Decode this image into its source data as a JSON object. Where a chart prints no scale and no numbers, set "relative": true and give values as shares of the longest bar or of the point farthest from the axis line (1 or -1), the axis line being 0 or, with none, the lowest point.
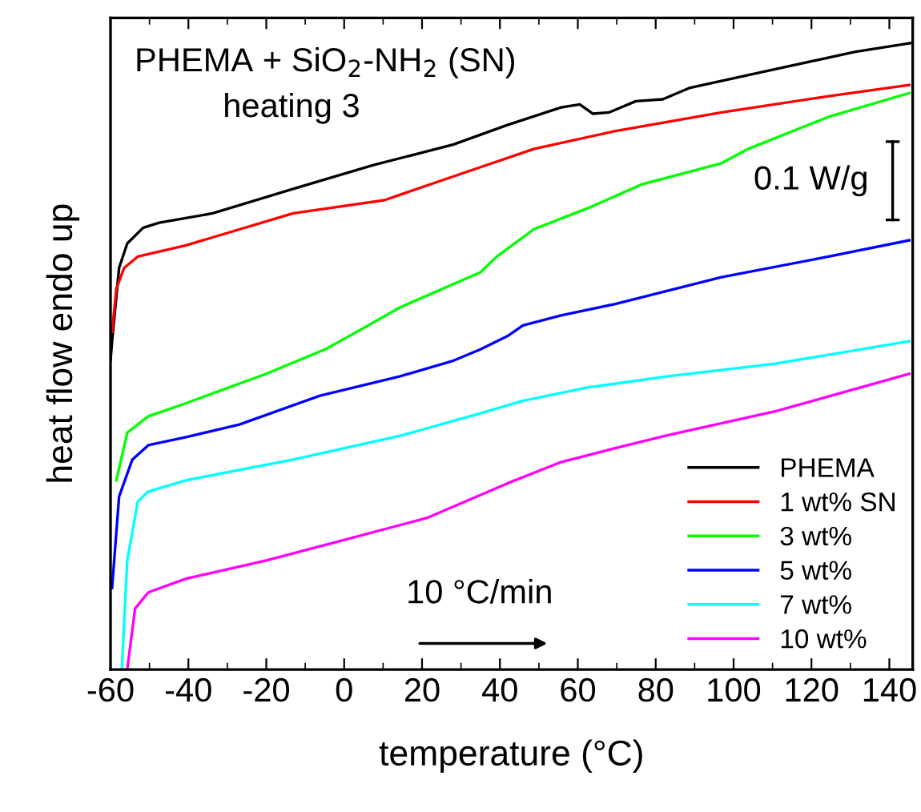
{
  "chart_data": {
    "type": "line",
    "relative": true,
    "xlabel": "temperature (°C)",
    "ylabel": "heat flow endo up",
    "xlim": [
      -60,
      146
    ],
    "xticks": [
      -60,
      -40,
      -20,
      0,
      20,
      40,
      60,
      80,
      100,
      120,
      140
    ],
    "grid": false,
    "legend": "bottom right",
    "tick_labels": "x",
    "annotations": [
      "PHEMA + SiO$_{2}$-NH$_{2}$ (SN)",
      "heating 3",
      "0.1 W/g",
      "10 °C/min"
    ],
    "series": [
      {
        "name": "PHEMA",
        "color": "#000000",
        "x": [
          -60,
          -59.6,
          -57.8,
          -55.7,
          -51.6,
          -47.5,
          -33.8,
          -13.1,
          7.5,
          28.1,
          41.9,
          55.7,
          60.5,
          63.9,
          68,
          74.9,
          81.8,
          88.6,
          110.7,
          131.3,
          145.7
        ],
        "values": [
          0.493,
          0.524,
          0.641,
          0.68,
          0.705,
          0.713,
          0.728,
          0.767,
          0.805,
          0.838,
          0.869,
          0.897,
          0.902,
          0.887,
          0.889,
          0.907,
          0.91,
          0.928,
          0.958,
          0.986,
          1.0
        ]
      },
      {
        "name": "1 wt% SN",
        "color": "#ff0000",
        "x": [
          -59.6,
          -58.5,
          -56.5,
          -53.0,
          -40.6,
          -13.1,
          10.3,
          28.1,
          48.8,
          69.4,
          96.9,
          124.4,
          145.1
        ],
        "values": [
          0.539,
          0.608,
          0.641,
          0.659,
          0.677,
          0.728,
          0.749,
          0.787,
          0.831,
          0.859,
          0.889,
          0.915,
          0.933
        ]
      },
      {
        "name": "3 wt%",
        "color": "#00ff00",
        "x": [
          -58.5,
          -55.7,
          -50.3,
          -40.6,
          -20.0,
          -4.9,
          0.7,
          14.4,
          35.0,
          39.2,
          48.8,
          62.5,
          76.3,
          96.9,
          103.8,
          124.4,
          145.1
        ],
        "values": [
          0.302,
          0.378,
          0.404,
          0.425,
          0.472,
          0.511,
          0.53,
          0.578,
          0.634,
          0.659,
          0.703,
          0.736,
          0.774,
          0.808,
          0.831,
          0.882,
          0.92
        ]
      },
      {
        "name": "5 wt%",
        "color": "#0000ff",
        "x": [
          -59.6,
          -57.8,
          -54.4,
          -50.3,
          -40.6,
          -26.9,
          -6.2,
          14.4,
          28.1,
          35.0,
          41.9,
          45.9,
          55.7,
          69.4,
          96.9,
          124.4,
          145.1
        ],
        "values": [
          0.13,
          0.276,
          0.335,
          0.358,
          0.371,
          0.391,
          0.437,
          0.468,
          0.493,
          0.511,
          0.532,
          0.549,
          0.565,
          0.583,
          0.626,
          0.659,
          0.685
        ]
      },
      {
        "name": "7 wt%",
        "color": "#00ffff",
        "x": [
          -57.1,
          -55.7,
          -53.0,
          -50.3,
          -40.6,
          -13.1,
          14.4,
          35.0,
          46.0,
          62.5,
          83.2,
          110.7,
          145.1
        ],
        "values": [
          0.0,
          0.174,
          0.268,
          0.284,
          0.302,
          0.335,
          0.373,
          0.409,
          0.429,
          0.45,
          0.468,
          0.488,
          0.524
        ]
      },
      {
        "name": "10 wt%",
        "color": "#ff00ff",
        "x": [
          -55.7,
          -53.7,
          -50.3,
          -40.6,
          -20.0,
          0.7,
          21.3,
          41.9,
          55.7,
          69.4,
          83.2,
          110.7,
          145.1
        ],
        "values": [
          0.0,
          0.097,
          0.123,
          0.145,
          0.174,
          0.208,
          0.242,
          0.297,
          0.331,
          0.353,
          0.374,
          0.412,
          0.472
        ]
      }
    ]
  }
}
